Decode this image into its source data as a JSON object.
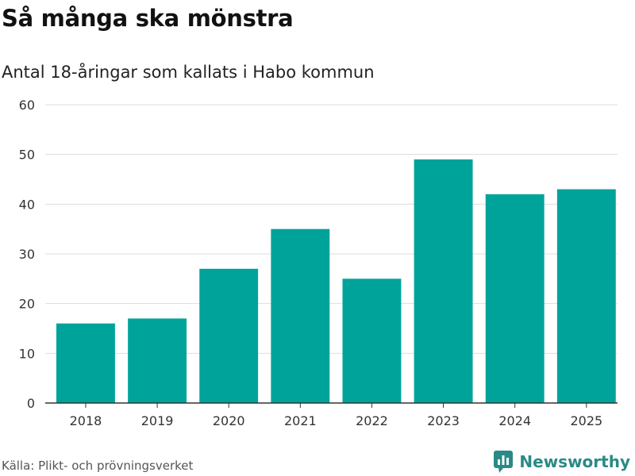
{
  "chart_data": {
    "type": "bar",
    "title": "Så många ska mönstra",
    "subtitle": "Antal 18-åringar som kallats i Habo kommun",
    "categories": [
      "2018",
      "2019",
      "2020",
      "2021",
      "2022",
      "2023",
      "2024",
      "2025"
    ],
    "values": [
      16,
      17,
      27,
      35,
      25,
      49,
      42,
      43
    ],
    "ylim": [
      0,
      60
    ],
    "yticks": [
      0,
      10,
      20,
      30,
      40,
      50,
      60
    ],
    "grid": true,
    "bar_color": "#00a39a",
    "xlabel": "",
    "ylabel": ""
  },
  "footer": {
    "source": "Källa: Plikt- och prövningsverket",
    "brand": "Newsworthy",
    "brand_color": "#2a8a86",
    "brand_icon": "newsworthy-logo-icon"
  }
}
